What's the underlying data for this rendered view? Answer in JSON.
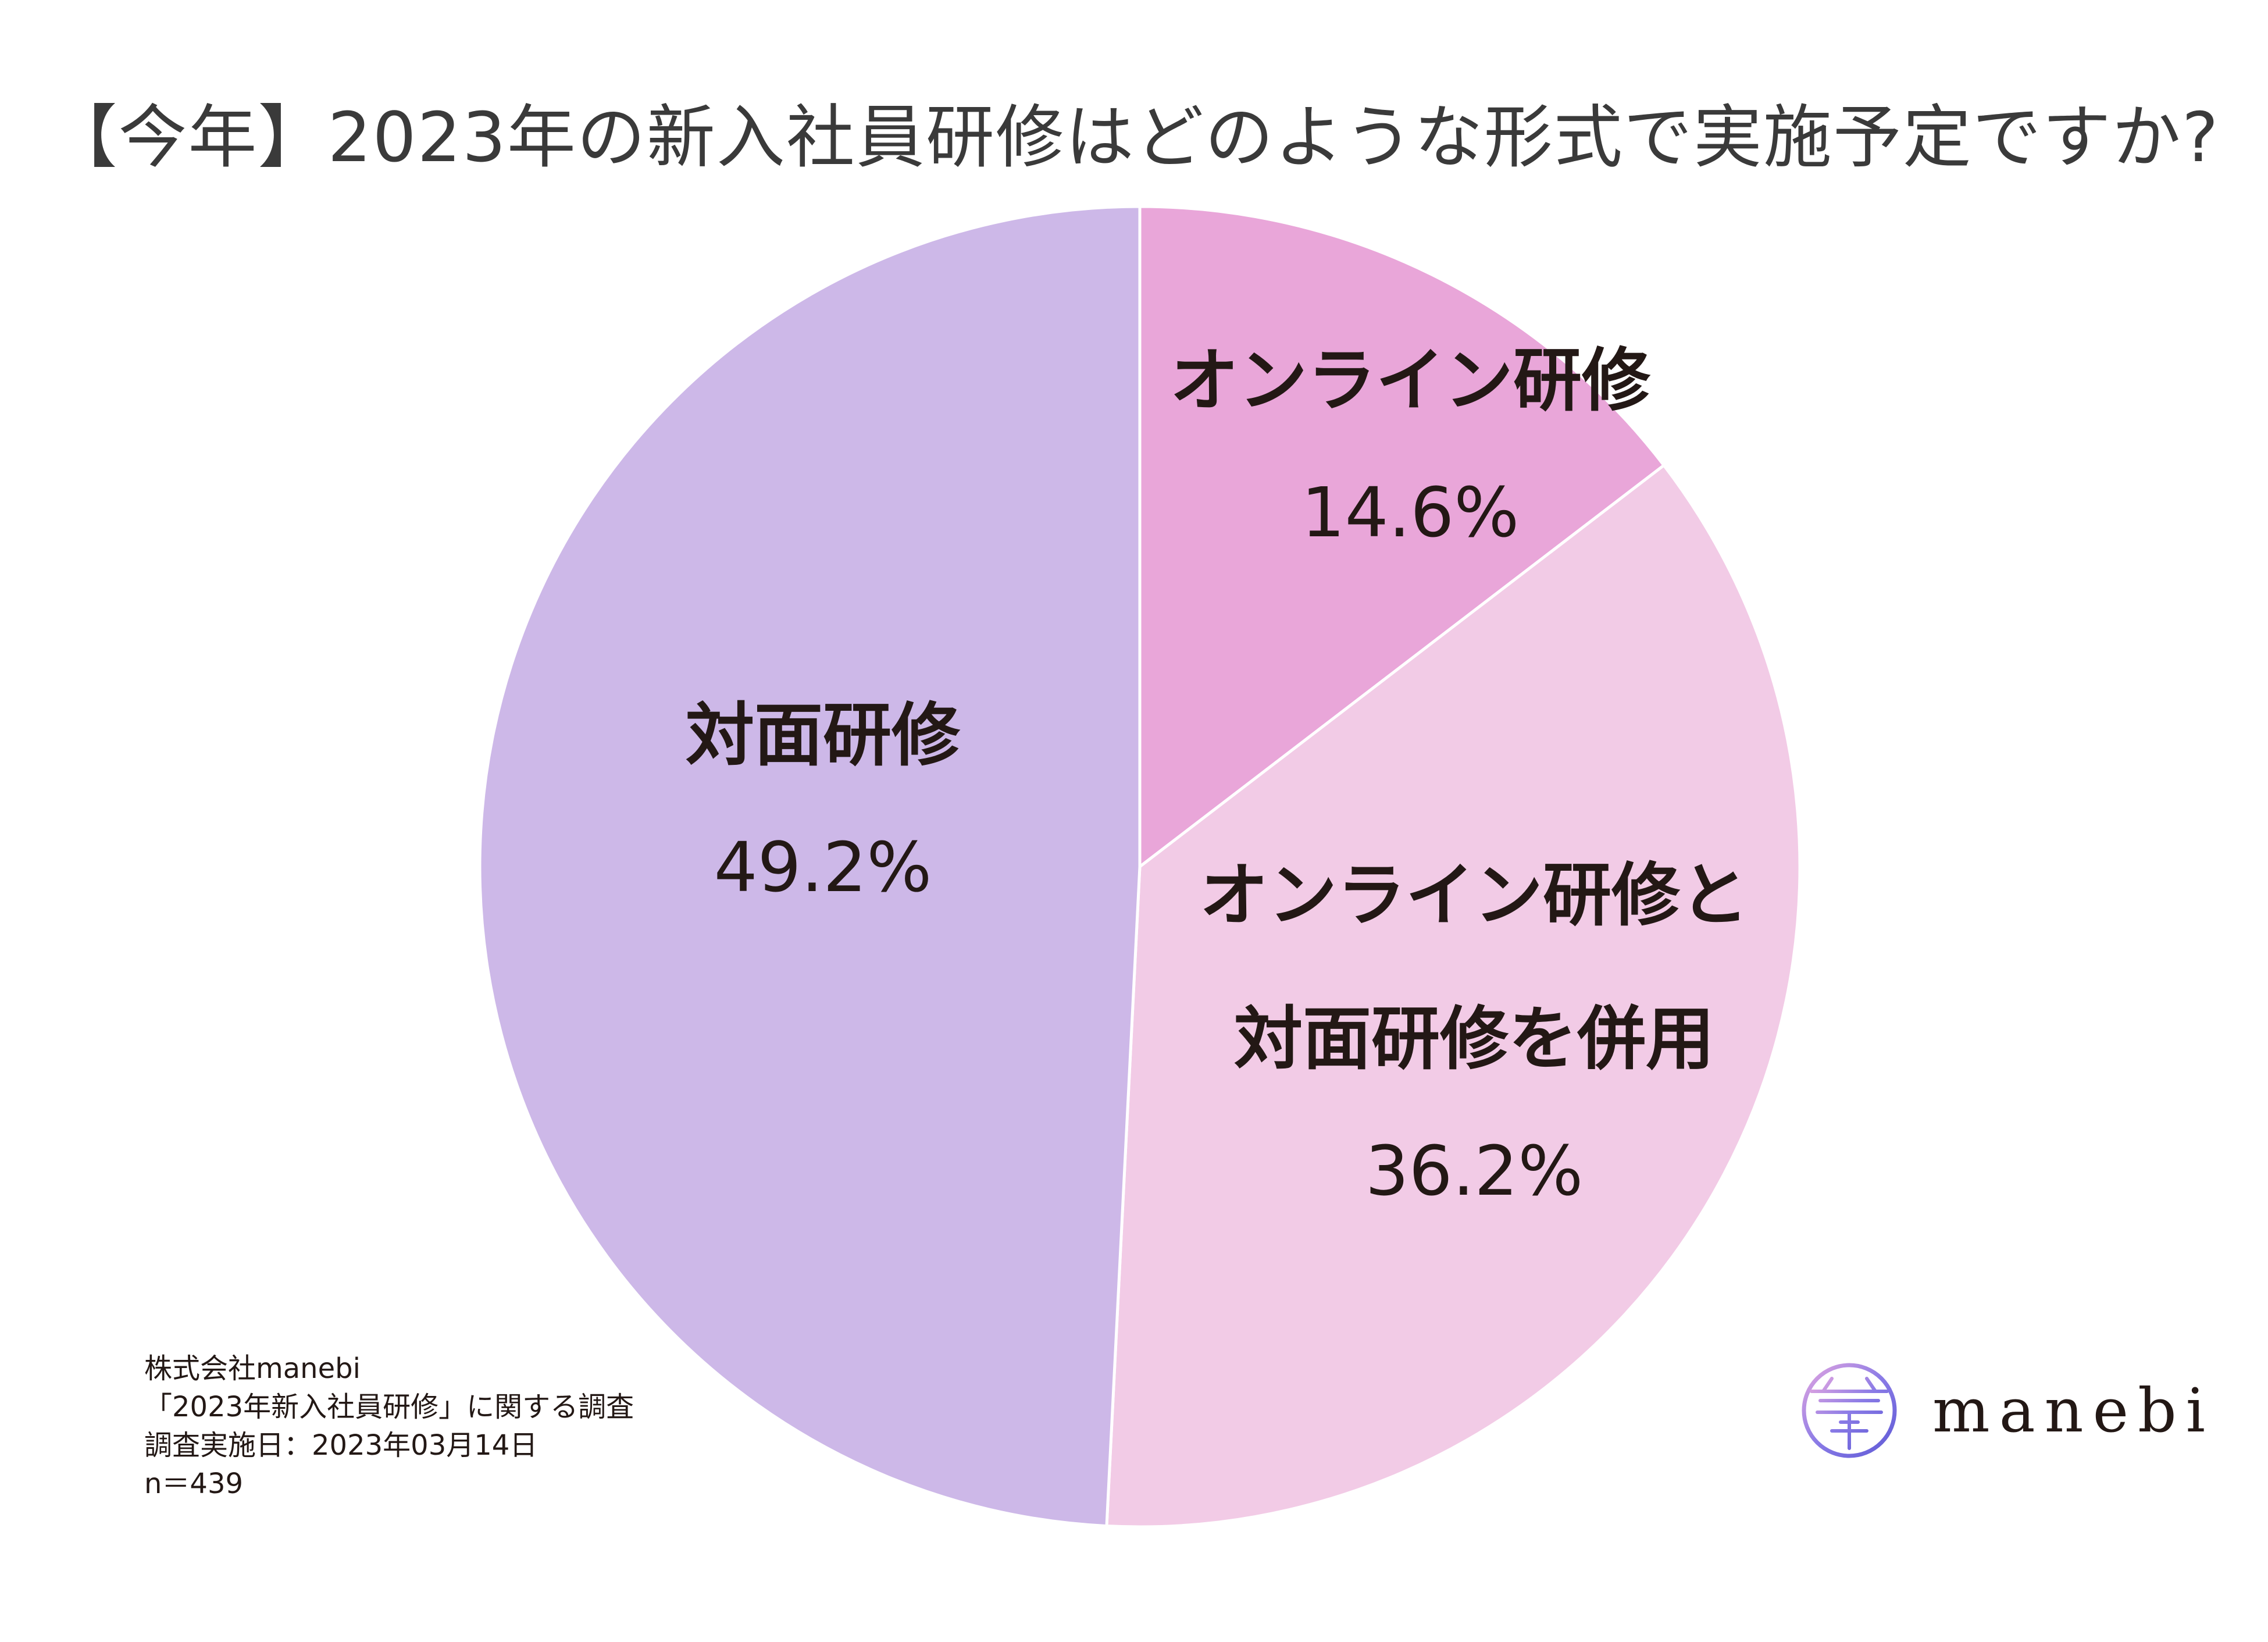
{
  "title": "【今年】2023年の新入社員研修はどのような形式で実施予定ですか?",
  "chart_data": {
    "type": "pie",
    "title": "【今年】2023年の新入社員研修はどのような形式で実施予定ですか?",
    "slices": [
      {
        "label_lines": [
          "オンライン研修"
        ],
        "value": 14.6,
        "value_label": "14.6%",
        "color": "#E9A6D9"
      },
      {
        "label_lines": [
          "オンライン研修と",
          "対面研修を併用"
        ],
        "value": 36.2,
        "value_label": "36.2%",
        "color": "#F2CBE6"
      },
      {
        "label_lines": [
          "対面研修"
        ],
        "value": 49.2,
        "value_label": "49.2%",
        "color": "#CDB8E8"
      }
    ],
    "start_angle": "12 o'clock",
    "direction": "clockwise",
    "legend": "none"
  },
  "source": {
    "lines": [
      "株式会社manebi",
      "「2023年新入社員研修」に関する調査",
      "調査実施日：2023年03月14日",
      "n＝439"
    ]
  },
  "brand": {
    "name": "manebi",
    "logo_icon": "manebi-logo-icon",
    "logo_colors": [
      "#E3A6E0",
      "#8A7BE6",
      "#5F5AD6"
    ]
  }
}
